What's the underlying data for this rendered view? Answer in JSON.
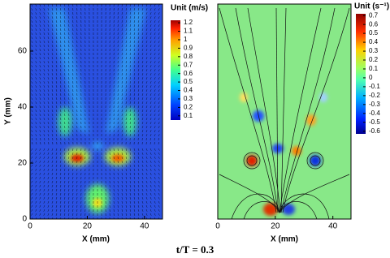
{
  "caption": "t/T = 0.3",
  "panels": [
    {
      "xlabel": "X (mm)",
      "ylabel": "Y (mm)",
      "xlim": [
        0,
        46.3
      ],
      "ylim": [
        0,
        76.8
      ],
      "xticks": [
        0,
        20,
        40
      ],
      "yticks": [
        0,
        20,
        40,
        60
      ],
      "colorbar": {
        "title": "Unit (m/s)",
        "lim": [
          0.05,
          1.23
        ],
        "ticks": [
          1.2,
          1.1,
          1,
          0.9,
          0.8,
          0.7,
          0.6,
          0.5,
          0.4,
          0.3,
          0.2,
          0.1
        ]
      }
    },
    {
      "xlabel": "X (mm)",
      "xlim": [
        0,
        46.3
      ],
      "xticks": [
        0,
        20,
        40
      ],
      "colorbar": {
        "title": "Unit (s⁻¹)",
        "lim": [
          -0.63,
          0.72
        ],
        "ticks": [
          0.7,
          0.6,
          0.5,
          0.4,
          0.3,
          0.2,
          0.1,
          0,
          -0.1,
          -0.2,
          -0.3,
          -0.4,
          -0.5,
          -0.6
        ]
      }
    }
  ]
}
